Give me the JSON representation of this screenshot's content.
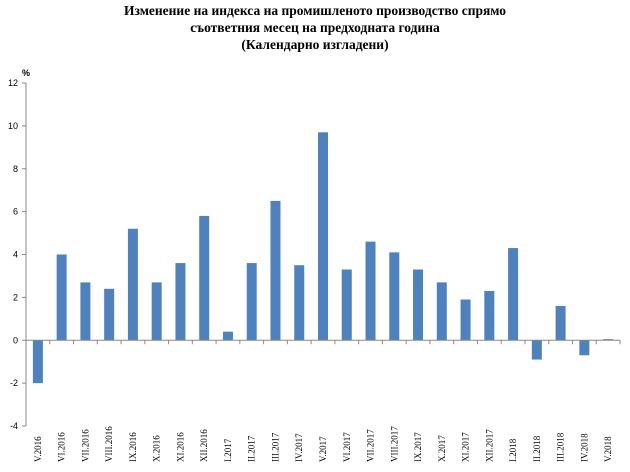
{
  "chart_data": {
    "type": "bar",
    "title_lines": [
      "Изменение на индекса на промишленото производство спрямо",
      "съответния месец на предходната година",
      "(Календарно изгладени)"
    ],
    "ylabel": "%",
    "xlabel": "",
    "ylim": [
      -4,
      12
    ],
    "yticks": [
      -4,
      -2,
      0,
      2,
      4,
      6,
      8,
      10,
      12
    ],
    "grid": false,
    "color": "#4F81BD",
    "categories": [
      "V.2016",
      "VI.2016",
      "VII.2016",
      "VIII.2016",
      "IX.2016",
      "X.2016",
      "XI.2016",
      "XII.2016",
      "I.2017",
      "II.2017",
      "III.2017",
      "IV.2017",
      "V.2017",
      "VI.2017",
      "VII.2017",
      "VIII.2017",
      "IX.2017",
      "X.2017",
      "XI.2017",
      "XII.2017",
      "I.2018",
      "II.2018",
      "III.2018",
      "IV.2018",
      "V.2018"
    ],
    "values": [
      -2.0,
      4.0,
      2.7,
      2.4,
      5.2,
      2.7,
      3.6,
      5.8,
      0.4,
      3.6,
      6.5,
      3.5,
      9.7,
      3.3,
      4.6,
      4.1,
      3.3,
      2.7,
      1.9,
      2.3,
      4.3,
      -0.9,
      1.6,
      -0.7,
      0.05
    ]
  }
}
